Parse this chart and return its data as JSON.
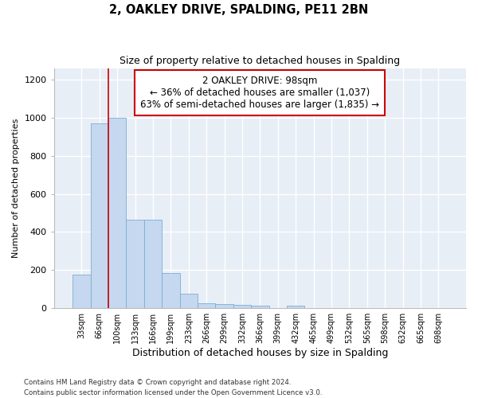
{
  "title": "2, OAKLEY DRIVE, SPALDING, PE11 2BN",
  "subtitle": "Size of property relative to detached houses in Spalding",
  "xlabel": "Distribution of detached houses by size in Spalding",
  "ylabel": "Number of detached properties",
  "bar_color": "#c5d8ef",
  "bar_edge_color": "#7aaed6",
  "background_color": "#e8eef6",
  "fig_background": "#ffffff",
  "grid_color": "#ffffff",
  "categories": [
    "33sqm",
    "66sqm",
    "100sqm",
    "133sqm",
    "166sqm",
    "199sqm",
    "233sqm",
    "266sqm",
    "299sqm",
    "332sqm",
    "366sqm",
    "399sqm",
    "432sqm",
    "465sqm",
    "499sqm",
    "532sqm",
    "565sqm",
    "598sqm",
    "632sqm",
    "665sqm",
    "698sqm"
  ],
  "values": [
    175,
    968,
    998,
    465,
    465,
    185,
    75,
    28,
    22,
    18,
    12,
    0,
    14,
    0,
    0,
    0,
    0,
    0,
    0,
    0,
    0
  ],
  "ylim": [
    0,
    1260
  ],
  "yticks": [
    0,
    200,
    400,
    600,
    800,
    1000,
    1200
  ],
  "property_line_color": "#cc0000",
  "annotation_text": "2 OAKLEY DRIVE: 98sqm\n← 36% of detached houses are smaller (1,037)\n63% of semi-detached houses are larger (1,835) →",
  "annotation_box_color": "#ffffff",
  "annotation_box_edge": "#cc0000",
  "footnote1": "Contains HM Land Registry data © Crown copyright and database right 2024.",
  "footnote2": "Contains public sector information licensed under the Open Government Licence v3.0."
}
